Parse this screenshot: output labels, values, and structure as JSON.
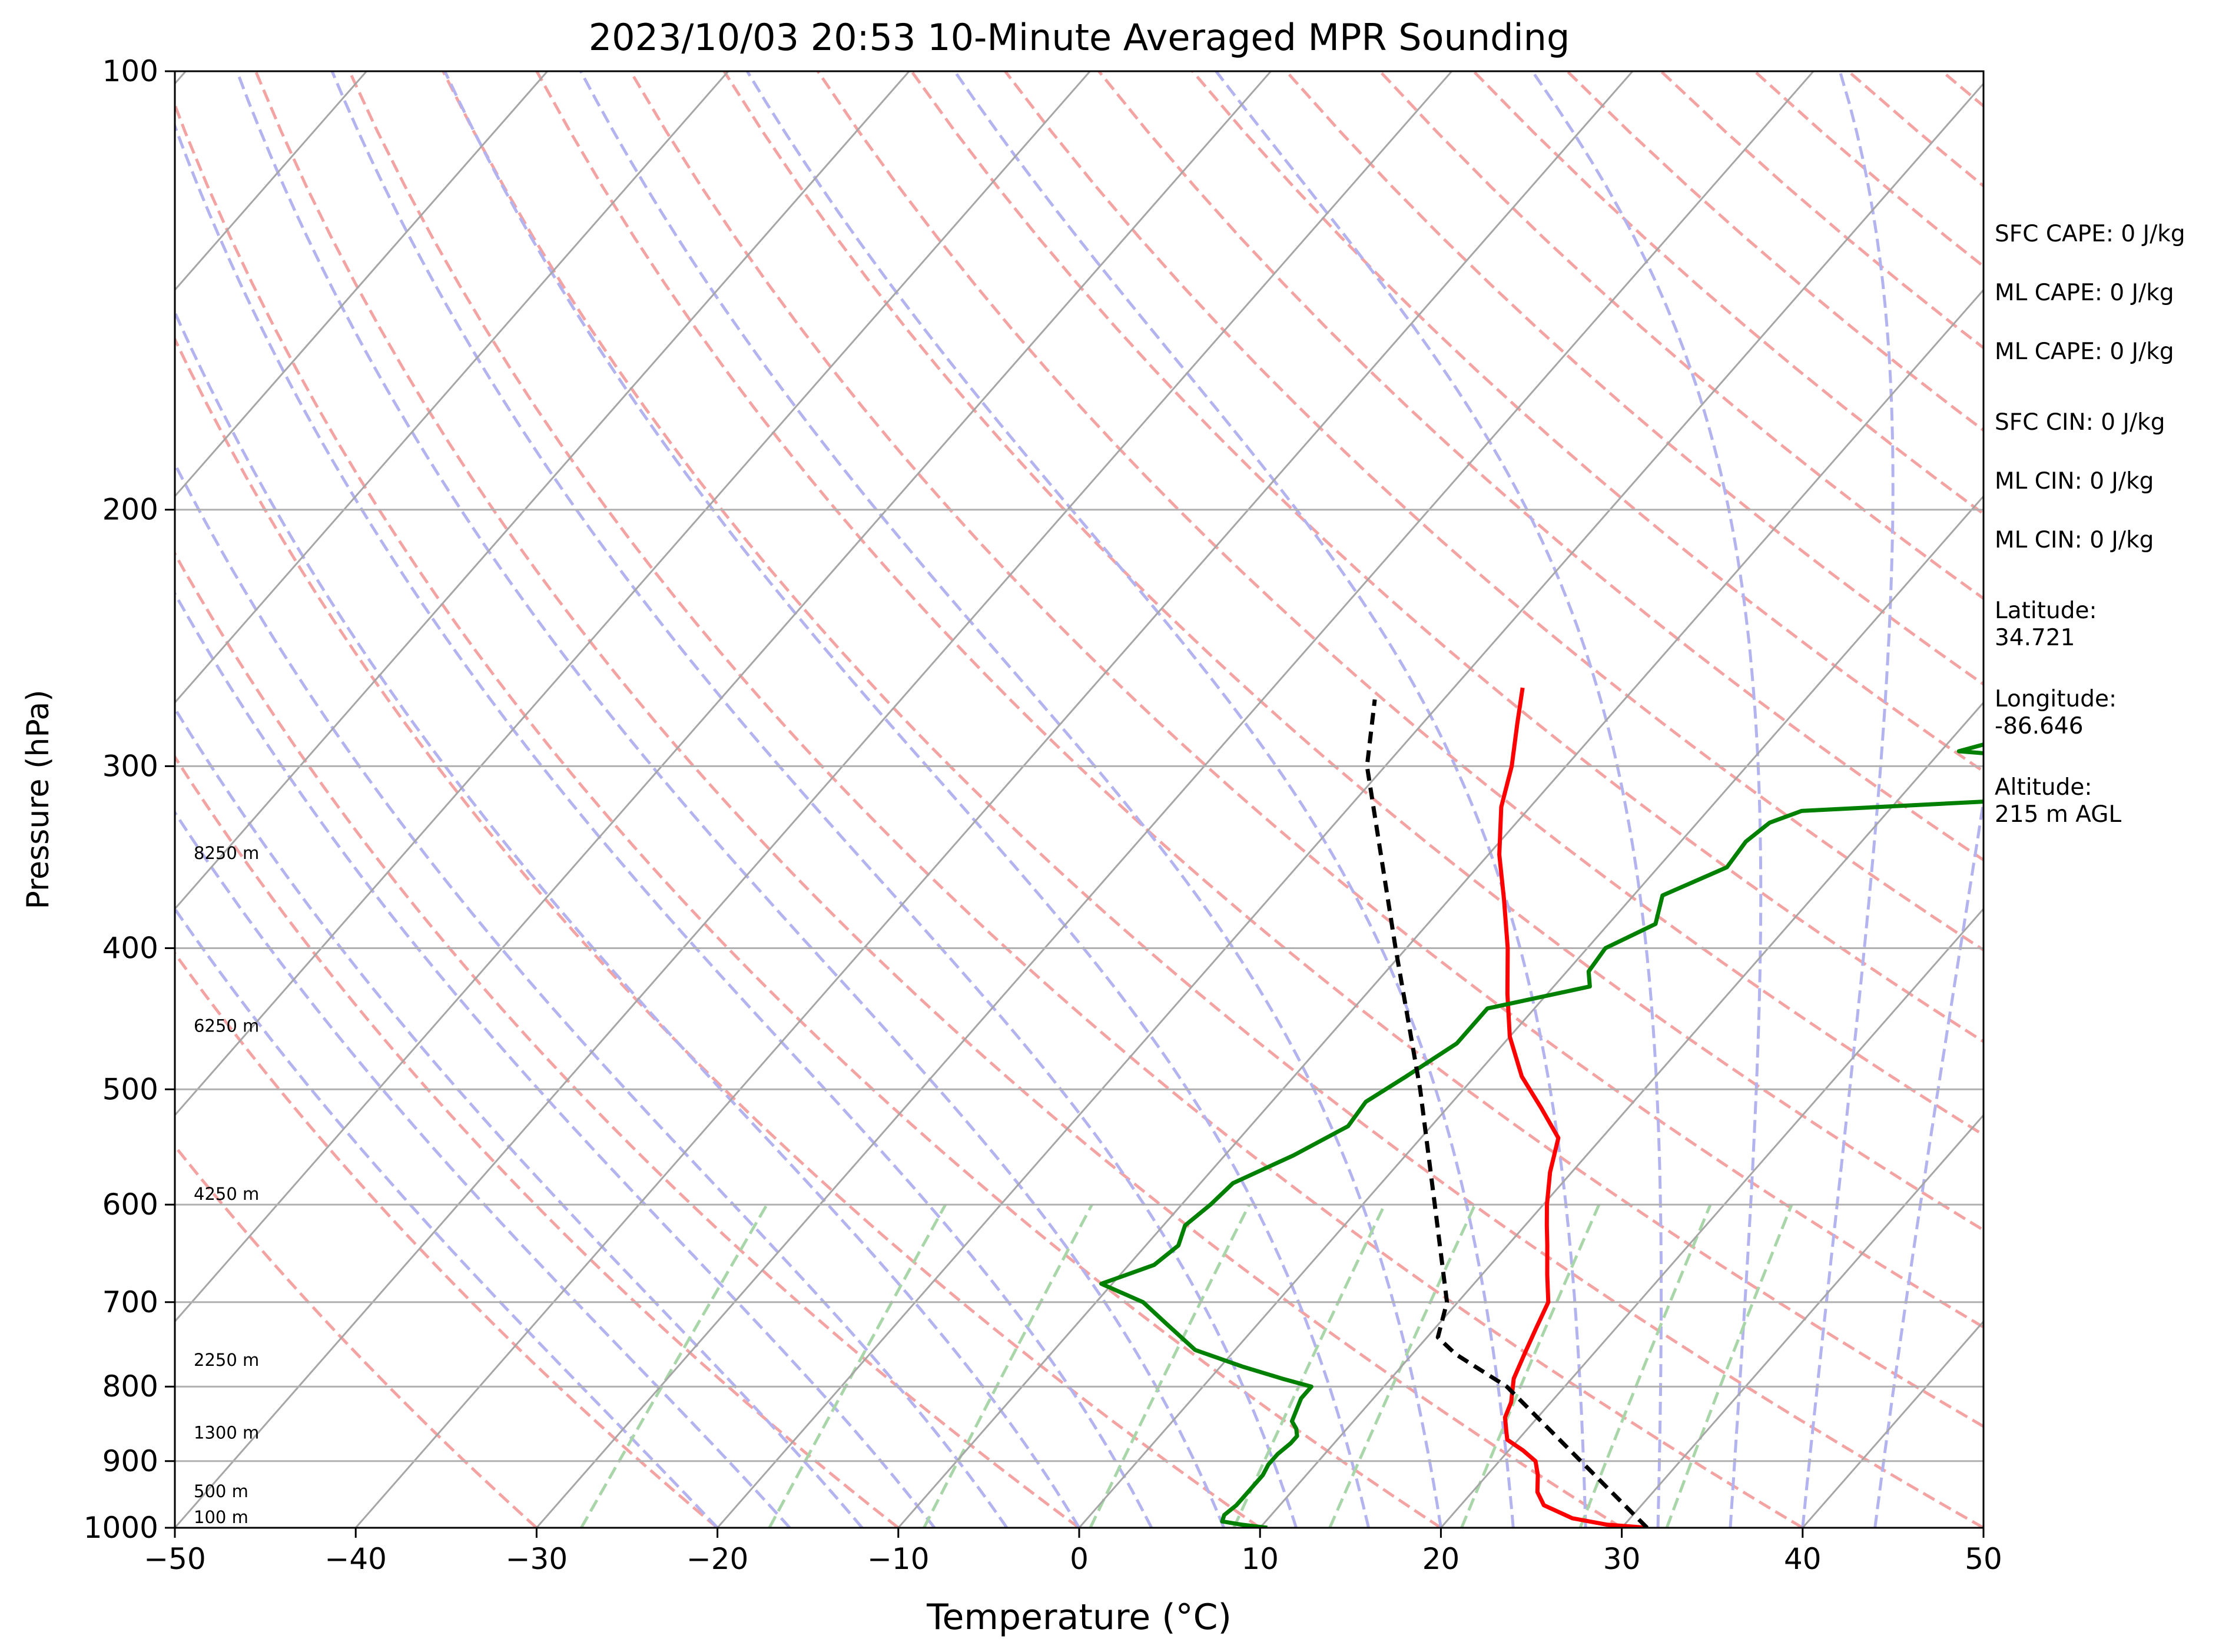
{
  "chart_data": {
    "type": "line",
    "title": "2023/10/03 20:53 10-Minute Averaged MPR Sounding",
    "xlabel": "Temperature (°C)",
    "ylabel": "Pressure (hPa)",
    "xlim": [
      -50,
      50
    ],
    "ylim": [
      1000,
      100
    ],
    "y_scale": "log",
    "skew": "skew-T log-P",
    "x_ticks": [
      -50,
      -40,
      -30,
      -20,
      -10,
      0,
      10,
      20,
      30,
      40,
      50
    ],
    "x_tick_labels": [
      "−50",
      "−40",
      "−30",
      "−20",
      "−10",
      "0",
      "10",
      "20",
      "30",
      "40",
      "50"
    ],
    "y_ticks": [
      100,
      200,
      300,
      400,
      500,
      600,
      700,
      800,
      900,
      1000
    ],
    "y_tick_labels": [
      "100",
      "200",
      "300",
      "400",
      "500",
      "600",
      "700",
      "800",
      "900",
      "1000"
    ],
    "grid": true,
    "background_lines": {
      "isotherms": {
        "color": "#a6a6a6",
        "style": "solid"
      },
      "dry_adiabats": {
        "color": "#f4a3a3",
        "style": "dashed"
      },
      "moist_adiabats": {
        "color": "#b3b3f0",
        "style": "dashed"
      },
      "mixing_ratio": {
        "color": "#a9d6a9",
        "style": "dashed"
      }
    },
    "series": [
      {
        "role": "temperature",
        "color": "#ff0000",
        "points": [
          [
            1000,
            31.4
          ],
          [
            995,
            29.0
          ],
          [
            985,
            26.8
          ],
          [
            965,
            24.6
          ],
          [
            945,
            23.6
          ],
          [
            920,
            22.8
          ],
          [
            900,
            22.0
          ],
          [
            885,
            20.8
          ],
          [
            870,
            19.4
          ],
          [
            860,
            19.0
          ],
          [
            840,
            18.2
          ],
          [
            820,
            17.8
          ],
          [
            790,
            16.8
          ],
          [
            760,
            16.2
          ],
          [
            730,
            15.6
          ],
          [
            700,
            15.0
          ],
          [
            670,
            13.6
          ],
          [
            640,
            12.2
          ],
          [
            620,
            11.2
          ],
          [
            600,
            10.2
          ],
          [
            570,
            8.8
          ],
          [
            540,
            7.6
          ],
          [
            515,
            5.2
          ],
          [
            490,
            2.6
          ],
          [
            460,
            0.0
          ],
          [
            430,
            -2.2
          ],
          [
            400,
            -4.4
          ],
          [
            370,
            -7.0
          ],
          [
            345,
            -9.4
          ],
          [
            320,
            -11.6
          ],
          [
            300,
            -13.0
          ],
          [
            280,
            -14.8
          ],
          [
            265,
            -16.2
          ]
        ]
      },
      {
        "role": "dewpoint",
        "color": "#008000",
        "points": [
          [
            1000,
            10.4
          ],
          [
            995,
            8.8
          ],
          [
            990,
            7.6
          ],
          [
            980,
            7.4
          ],
          [
            965,
            7.6
          ],
          [
            950,
            7.6
          ],
          [
            935,
            7.6
          ],
          [
            920,
            7.6
          ],
          [
            905,
            7.4
          ],
          [
            890,
            7.4
          ],
          [
            875,
            7.6
          ],
          [
            865,
            7.6
          ],
          [
            855,
            7.2
          ],
          [
            845,
            6.6
          ],
          [
            835,
            6.4
          ],
          [
            825,
            6.2
          ],
          [
            815,
            6.0
          ],
          [
            800,
            6.0
          ],
          [
            790,
            4.0
          ],
          [
            775,
            1.2
          ],
          [
            755,
            -2.2
          ],
          [
            725,
            -5.0
          ],
          [
            700,
            -7.4
          ],
          [
            680,
            -10.6
          ],
          [
            660,
            -8.6
          ],
          [
            640,
            -8.2
          ],
          [
            620,
            -8.8
          ],
          [
            600,
            -8.4
          ],
          [
            580,
            -8.2
          ],
          [
            555,
            -6.2
          ],
          [
            530,
            -4.6
          ],
          [
            510,
            -4.8
          ],
          [
            490,
            -3.8
          ],
          [
            465,
            -2.6
          ],
          [
            440,
            -2.6
          ],
          [
            425,
            2.0
          ],
          [
            415,
            1.2
          ],
          [
            400,
            1.0
          ],
          [
            385,
            2.6
          ],
          [
            368,
            1.6
          ],
          [
            352,
            3.8
          ],
          [
            338,
            3.6
          ],
          [
            328,
            4.0
          ],
          [
            322,
            5.2
          ],
          [
            310,
            30.0
          ],
          [
            302,
            25.0
          ],
          [
            293,
            11.0
          ],
          [
            290,
            12.0
          ],
          [
            285,
            15.0
          ]
        ]
      },
      {
        "role": "parcel",
        "color": "#000000",
        "style": "dashed",
        "points": [
          [
            1000,
            31.4
          ],
          [
            800,
            16.8
          ],
          [
            760,
            12.4
          ],
          [
            740,
            10.6
          ],
          [
            700,
            9.4
          ],
          [
            600,
            4.0
          ],
          [
            500,
            -2.4
          ],
          [
            400,
            -10.6
          ],
          [
            300,
            -21.0
          ],
          [
            270,
            -23.8
          ]
        ]
      }
    ],
    "height_labels": [
      {
        "label": "8250 m",
        "p": 350
      },
      {
        "label": "6250 m",
        "p": 460
      },
      {
        "label": "4250 m",
        "p": 600
      },
      {
        "label": "2250 m",
        "p": 780
      },
      {
        "label": "1300 m",
        "p": 875
      },
      {
        "label": "500 m",
        "p": 960
      },
      {
        "label": "100 m",
        "p": 1000
      }
    ],
    "annotations": [
      "SFC CAPE: 0 J/kg",
      "ML CAPE: 0 J/kg",
      "ML CAPE: 0 J/kg",
      "SFC CIN: 0 J/kg",
      "ML CIN: 0 J/kg",
      "ML CIN: 0 J/kg",
      "Latitude:\n34.721",
      "Longitude:\n-86.646",
      "Altitude:\n215 m AGL"
    ]
  }
}
